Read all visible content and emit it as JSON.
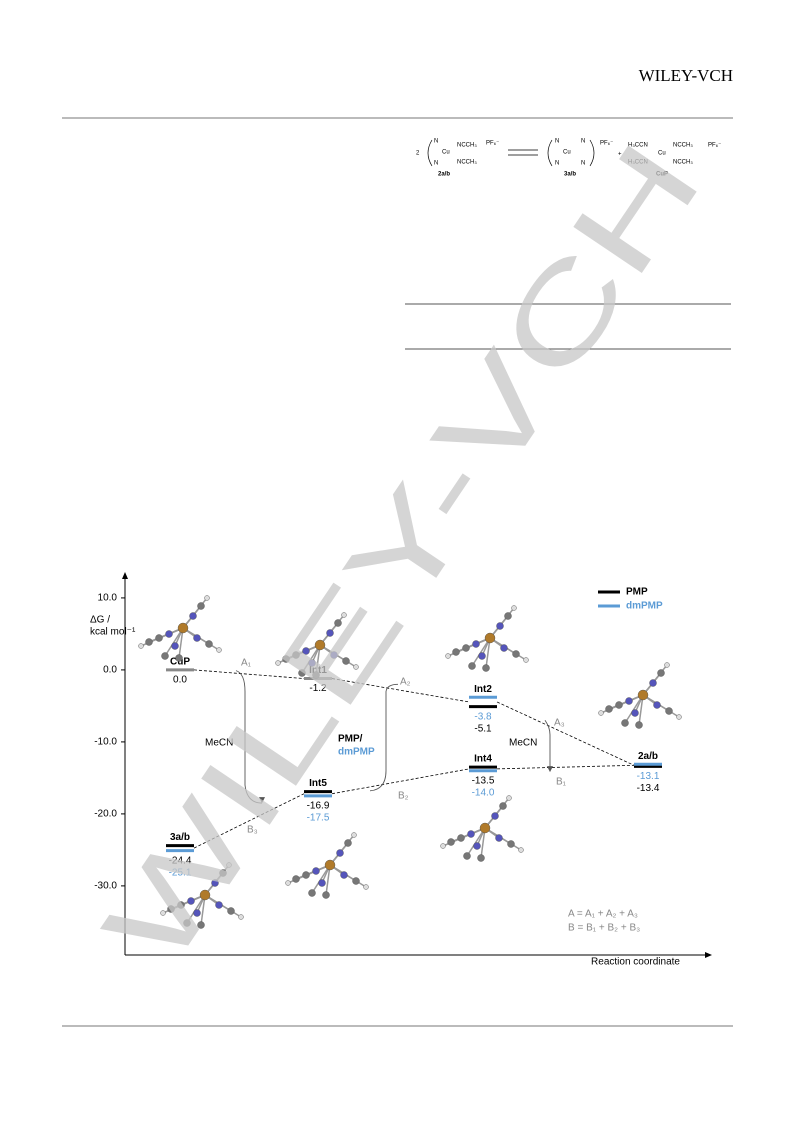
{
  "header": {
    "publisher": "WILEY-VCH"
  },
  "watermark": "WILEY-VCH",
  "scheme": {
    "coefficient": "2",
    "n": "N",
    "cu": "Cu",
    "ncch3": "NCCH₃",
    "h3ccn": "H₃CCN",
    "pf6": "PF₆⁻",
    "plus": "+",
    "compound_2": "2a/b",
    "compound_3": "3a/b",
    "compound_cup": "CuP"
  },
  "chart_data": {
    "type": "energy-level",
    "ylabel_lines": [
      "ΔG /",
      "kcal mol⁻¹"
    ],
    "xlabel": "Reaction coordinate",
    "categories": [
      "CuP",
      "Int1",
      "Int2",
      "2a/b",
      "Int4",
      "Int5",
      "3a/b"
    ],
    "series": [
      {
        "name": "PMP",
        "color": "#000000",
        "values": [
          0.0,
          -1.2,
          -5.1,
          -13.4,
          -13.5,
          -16.9,
          -24.4
        ],
        "value_labels": [
          "0.0",
          "-1.2",
          "-5.1",
          "-13.4",
          "-13.5",
          "-16.9",
          "-24.4"
        ]
      },
      {
        "name": "dmPMP",
        "color": "#5b9bd5",
        "values": [
          null,
          null,
          -3.8,
          -13.1,
          -14.0,
          -17.5,
          -25.1
        ],
        "value_labels": [
          null,
          null,
          "-3.8",
          "-13.1",
          "-14.0",
          "-17.5",
          "-25.1"
        ]
      }
    ],
    "single_level_color": "#888888",
    "ylim": [
      -39.6,
      13.6
    ],
    "yticks": [
      {
        "value": 10,
        "label": "10.0"
      },
      {
        "value": 0,
        "label": "0.0"
      },
      {
        "value": -10,
        "label": "-10.0"
      },
      {
        "value": -20,
        "label": "-20.0"
      },
      {
        "value": -30,
        "label": "-30.0"
      }
    ],
    "legend": "top-right",
    "annotations": {
      "a1": "A₁",
      "a2": "A₂",
      "a3": "A₃",
      "b1": "B₁",
      "b2": "B₂",
      "b3": "B₃",
      "mecn": "MeCN",
      "pmp": "PMP/",
      "dmpmp": "dmPMP",
      "a_sum": "A = A₁ + A₂ + A₃",
      "b_sum": "B = B₁ + B₂ + B₃"
    }
  }
}
